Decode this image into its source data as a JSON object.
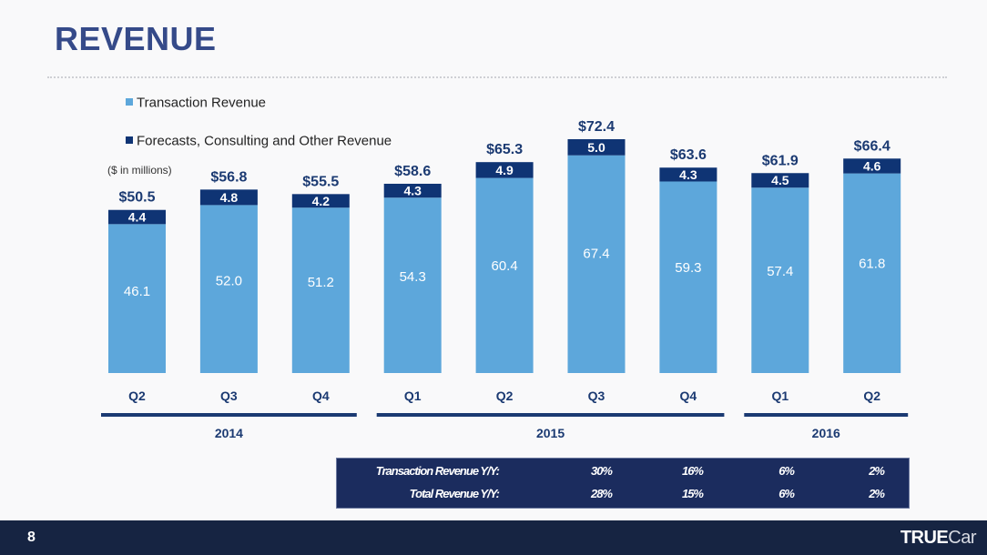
{
  "page": {
    "title": "REVENUE",
    "units_note": "($ in millions)",
    "page_number": "8",
    "brand": {
      "bold": "TRUE",
      "light": "Car"
    }
  },
  "legend": [
    {
      "label": "Transaction Revenue",
      "color": "#5da7db"
    },
    {
      "label": "Forecasts, Consulting and Other Revenue",
      "color": "#0f3474"
    }
  ],
  "chart_data": {
    "type": "bar",
    "stacked": true,
    "title": "REVENUE",
    "ylabel": "($ in millions)",
    "xlabel": "",
    "ylim": [
      0,
      75
    ],
    "grid": false,
    "legend_position": "top-left",
    "categories": [
      "Q2",
      "Q3",
      "Q4",
      "Q1",
      "Q2",
      "Q3",
      "Q4",
      "Q1",
      "Q2"
    ],
    "years": [
      {
        "label": "2014",
        "start": 0,
        "end": 2
      },
      {
        "label": "2015",
        "start": 3,
        "end": 6
      },
      {
        "label": "2016",
        "start": 7,
        "end": 8
      }
    ],
    "series": [
      {
        "name": "Transaction Revenue",
        "color": "#5da7db",
        "values": [
          46.1,
          52.0,
          51.2,
          54.3,
          60.4,
          67.4,
          59.3,
          57.4,
          61.8
        ]
      },
      {
        "name": "Forecasts, Consulting and Other Revenue",
        "color": "#0f3474",
        "values": [
          4.4,
          4.8,
          4.2,
          4.3,
          4.9,
          5.0,
          4.3,
          4.5,
          4.6
        ]
      }
    ],
    "totals": [
      "$50.5",
      "$56.8",
      "$55.5",
      "$58.6",
      "$65.3",
      "$72.4",
      "$63.6",
      "$61.9",
      "$66.4"
    ],
    "segment_labels": {
      "transaction": [
        "46.1",
        "52.0",
        "51.2",
        "54.3",
        "60.4",
        "67.4",
        "59.3",
        "57.4",
        "61.8"
      ],
      "other": [
        "4.4",
        "4.8",
        "4.2",
        "4.3",
        "4.9",
        "5.0",
        "4.3",
        "4.5",
        "4.6"
      ]
    }
  },
  "yoy_table": {
    "rows": [
      {
        "label": "Transaction Revenue Y/Y:",
        "values": [
          "30%",
          "16%",
          "6%",
          "2%"
        ]
      },
      {
        "label": "Total Revenue Y/Y:",
        "values": [
          "28%",
          "15%",
          "6%",
          "2%"
        ]
      }
    ]
  }
}
